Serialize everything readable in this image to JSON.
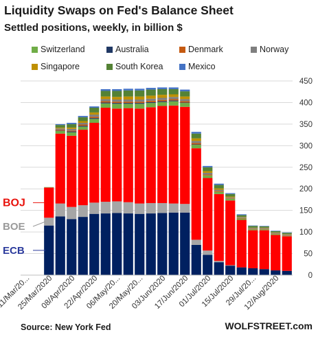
{
  "title": "Liquidity Swaps on Fed's Balance Sheet",
  "subtitle": "Settled positions, weekly, in billion $",
  "source": "Source: New York Fed",
  "brand": "WOLFSTREET.com",
  "legend": [
    {
      "name": "Switzerland",
      "color": "#70ad47"
    },
    {
      "name": "Australia",
      "color": "#203864"
    },
    {
      "name": "Denmark",
      "color": "#c55a11"
    },
    {
      "name": "Norway",
      "color": "#7f7f7f"
    },
    {
      "name": "Singapore",
      "color": "#bf9000"
    },
    {
      "name": "South Korea",
      "color": "#548235"
    },
    {
      "name": "Mexico",
      "color": "#4472c4"
    }
  ],
  "chart_data": {
    "type": "bar",
    "stacked": true,
    "title": "Liquidity Swaps on Fed's Balance Sheet",
    "subtitle": "Settled positions, weekly, in billion $",
    "ylim": [
      0,
      450
    ],
    "yticks": [
      0,
      50,
      100,
      150,
      200,
      250,
      300,
      350,
      400,
      450
    ],
    "y_axis_side": "right",
    "x_tick_labels": [
      "11/Mar/20...",
      "25/Mar/2020",
      "08/Apr/2020",
      "22/Apr/2020",
      "06/May/20...",
      "20/May/20...",
      "03/Jun/2020",
      "17/Jun/2020",
      "01/Jul/2020",
      "15/Jul/2020",
      "29/Jul/20...",
      "12/Aug/2020"
    ],
    "categories": [
      "11/Mar/2020",
      "18/Mar/2020",
      "25/Mar/2020",
      "01/Apr/2020",
      "08/Apr/2020",
      "15/Apr/2020",
      "22/Apr/2020",
      "29/Apr/2020",
      "06/May/2020",
      "13/May/2020",
      "20/May/2020",
      "27/May/2020",
      "03/Jun/2020",
      "10/Jun/2020",
      "17/Jun/2020",
      "24/Jun/2020",
      "01/Jul/2020",
      "08/Jul/2020",
      "15/Jul/2020",
      "22/Jul/2020",
      "29/Jul/2020",
      "05/Aug/2020",
      "12/Aug/2020",
      "19/Aug/2020"
    ],
    "annotations": [
      {
        "text": "BOJ",
        "color": "#e8120c",
        "series": "BOJ"
      },
      {
        "text": "BOE",
        "color": "#9a9a9a",
        "series": "BOE"
      },
      {
        "text": "ECB",
        "color": "#2b3a9c",
        "series": "ECB"
      }
    ],
    "series": [
      {
        "name": "ECB",
        "color": "#002060",
        "values": [
          0.1,
          0.5,
          115,
          136,
          130,
          135,
          142,
          143,
          144,
          143,
          142,
          143,
          144,
          145,
          145,
          70,
          47,
          30,
          22,
          18,
          16,
          14,
          11,
          10
        ]
      },
      {
        "name": "BOE",
        "color": "#a6a6a6",
        "values": [
          0,
          0,
          18,
          30,
          28,
          27,
          26,
          27,
          27,
          26,
          24,
          24,
          23,
          21,
          20,
          12,
          10,
          3,
          1,
          0,
          0,
          0,
          0,
          0
        ]
      },
      {
        "name": "BOJ",
        "color": "#ff0000",
        "values": [
          0,
          0,
          70,
          162,
          165,
          175,
          185,
          218,
          215,
          218,
          220,
          222,
          225,
          227,
          225,
          212,
          168,
          155,
          150,
          110,
          88,
          90,
          82,
          80
        ]
      },
      {
        "name": "Switzerland",
        "color": "#70ad47",
        "values": [
          0,
          0,
          1,
          6,
          8,
          7,
          9,
          10,
          11,
          10,
          11,
          10,
          9,
          10,
          9,
          8,
          6,
          5,
          4,
          3,
          2,
          2,
          2,
          1
        ]
      },
      {
        "name": "Australia",
        "color": "#203864",
        "values": [
          0,
          0,
          0,
          1,
          2,
          2,
          2,
          2,
          2,
          2,
          2,
          2,
          2,
          2,
          1,
          1,
          0,
          0,
          0,
          0,
          0,
          0,
          0,
          0
        ]
      },
      {
        "name": "Denmark",
        "color": "#c55a11",
        "values": [
          0,
          0,
          0,
          2,
          2,
          3,
          3,
          3,
          3,
          3,
          3,
          3,
          3,
          3,
          3,
          3,
          2,
          2,
          1,
          1,
          1,
          1,
          1,
          1
        ]
      },
      {
        "name": "Norway",
        "color": "#7f7f7f",
        "values": [
          0,
          0,
          0,
          3,
          4,
          4,
          5,
          5,
          5,
          5,
          5,
          5,
          5,
          5,
          5,
          5,
          4,
          3,
          2,
          2,
          2,
          2,
          2,
          2
        ]
      },
      {
        "name": "Singapore",
        "color": "#bf9000",
        "values": [
          0,
          0,
          0,
          2,
          3,
          4,
          5,
          6,
          6,
          7,
          7,
          7,
          7,
          6,
          6,
          6,
          4,
          3,
          2,
          1,
          1,
          1,
          1,
          1
        ]
      },
      {
        "name": "South Korea",
        "color": "#548235",
        "values": [
          0,
          0,
          0,
          6,
          8,
          9,
          11,
          13,
          14,
          14,
          14,
          14,
          13,
          12,
          12,
          11,
          9,
          8,
          6,
          4,
          4,
          3,
          3,
          3
        ]
      },
      {
        "name": "Mexico",
        "color": "#4472c4",
        "values": [
          0,
          0,
          0,
          2,
          3,
          3,
          3,
          4,
          4,
          4,
          4,
          4,
          4,
          4,
          4,
          4,
          3,
          3,
          2,
          2,
          1,
          1,
          1,
          1
        ]
      }
    ]
  }
}
